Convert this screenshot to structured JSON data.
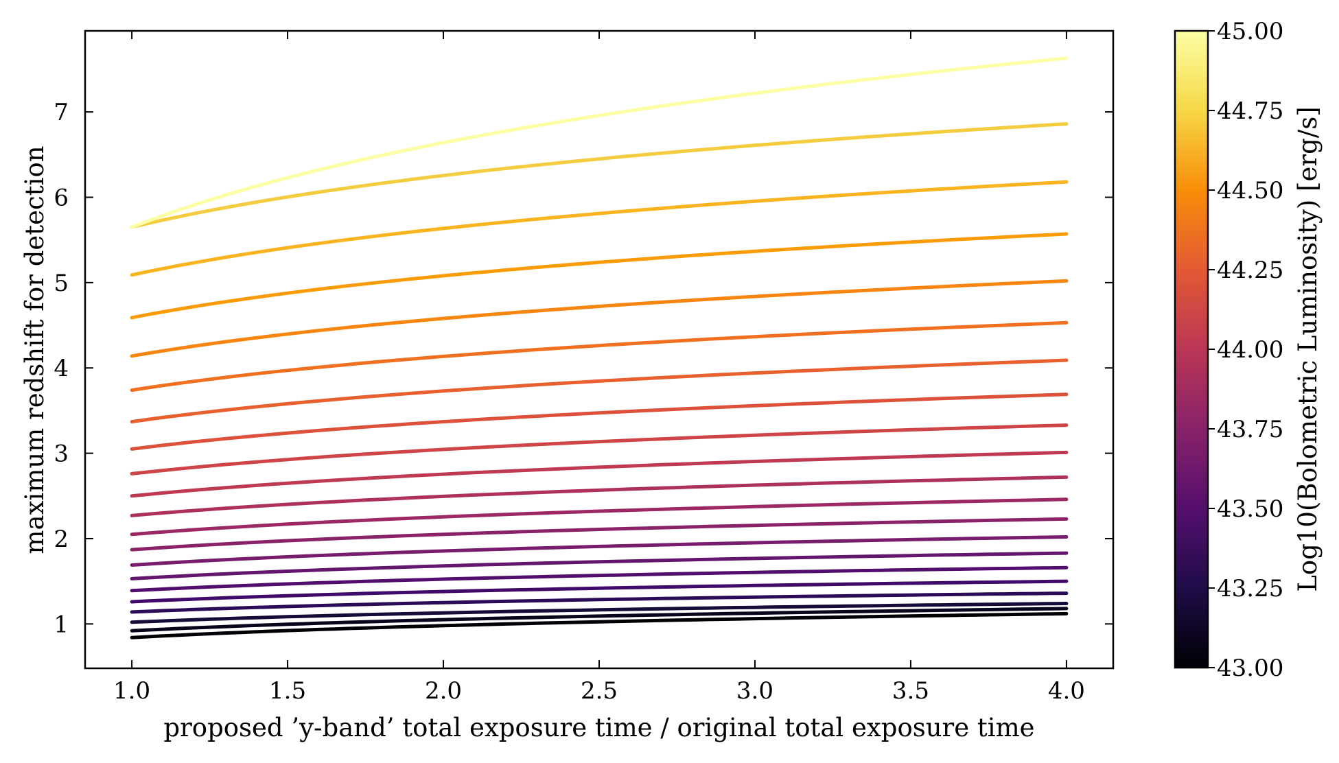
{
  "chart_data": {
    "type": "line",
    "title": "",
    "xlabel": "proposed ’y-band’ total exposure time / original total exposure time",
    "ylabel": "maximum redshift for detection",
    "xlim": [
      0.85,
      4.15
    ],
    "ylim": [
      0.48,
      7.95
    ],
    "x_ticks": [
      1.0,
      1.5,
      2.0,
      2.5,
      3.0,
      3.5,
      4.0
    ],
    "x_tick_labels": [
      "1.0",
      "1.5",
      "2.0",
      "2.5",
      "3.0",
      "3.5",
      "4.0"
    ],
    "y_ticks": [
      1,
      2,
      3,
      4,
      5,
      6,
      7
    ],
    "y_tick_labels": [
      "1",
      "2",
      "3",
      "4",
      "5",
      "6",
      "7"
    ],
    "grid": false,
    "colormap": "inferno",
    "colorbar": {
      "label": "Log10(Bolometric Luminosity) [erg/s]",
      "range": [
        43.0,
        45.0
      ],
      "ticks": [
        43.0,
        43.25,
        43.5,
        43.75,
        44.0,
        44.25,
        44.5,
        44.75,
        45.0
      ],
      "tick_labels": [
        "43.00",
        "43.25",
        "43.50",
        "43.75",
        "44.00",
        "44.25",
        "44.50",
        "44.75",
        "45.00"
      ]
    },
    "series": [
      {
        "log_luminosity": 43.0,
        "color": "#000004",
        "y_start": 0.84,
        "y_end": 1.12
      },
      {
        "log_luminosity": 43.1,
        "color": "#07061c",
        "y_start": 0.92,
        "y_end": 1.18
      },
      {
        "log_luminosity": 43.2,
        "color": "#160b39",
        "y_start": 1.02,
        "y_end": 1.24
      },
      {
        "log_luminosity": 43.3,
        "color": "#2a0b57",
        "y_start": 1.14,
        "y_end": 1.36
      },
      {
        "log_luminosity": 43.4,
        "color": "#3f0a6a",
        "y_start": 1.26,
        "y_end": 1.5
      },
      {
        "log_luminosity": 43.5,
        "color": "#510e6c",
        "y_start": 1.39,
        "y_end": 1.66
      },
      {
        "log_luminosity": 43.6,
        "color": "#64156e",
        "y_start": 1.53,
        "y_end": 1.83
      },
      {
        "log_luminosity": 43.7,
        "color": "#781c6d",
        "y_start": 1.69,
        "y_end": 2.02
      },
      {
        "log_luminosity": 43.8,
        "color": "#8a226a",
        "y_start": 1.87,
        "y_end": 2.23
      },
      {
        "log_luminosity": 43.9,
        "color": "#9c2964",
        "y_start": 2.05,
        "y_end": 2.46
      },
      {
        "log_luminosity": 44.0,
        "color": "#ae305c",
        "y_start": 2.27,
        "y_end": 2.72
      },
      {
        "log_luminosity": 44.1,
        "color": "#bf3952",
        "y_start": 2.5,
        "y_end": 3.01
      },
      {
        "log_luminosity": 44.2,
        "color": "#cf4446",
        "y_start": 2.76,
        "y_end": 3.33
      },
      {
        "log_luminosity": 44.3,
        "color": "#dd513a",
        "y_start": 3.05,
        "y_end": 3.69
      },
      {
        "log_luminosity": 44.4,
        "color": "#e8602d",
        "y_start": 3.37,
        "y_end": 4.09
      },
      {
        "log_luminosity": 44.5,
        "color": "#f17020",
        "y_start": 3.74,
        "y_end": 4.53
      },
      {
        "log_luminosity": 44.6,
        "color": "#f8850f",
        "y_start": 4.14,
        "y_end": 5.02
      },
      {
        "log_luminosity": 44.7,
        "color": "#fb9b06",
        "y_start": 4.59,
        "y_end": 5.57
      },
      {
        "log_luminosity": 44.8,
        "color": "#f9b41f",
        "y_start": 5.09,
        "y_end": 6.18
      },
      {
        "log_luminosity": 44.9,
        "color": "#f3cc40",
        "y_start": 5.65,
        "y_end": 6.86
      },
      {
        "log_luminosity": 45.0,
        "color": "#fcffa4",
        "y_start": 5.65,
        "y_end": 7.63
      }
    ]
  }
}
